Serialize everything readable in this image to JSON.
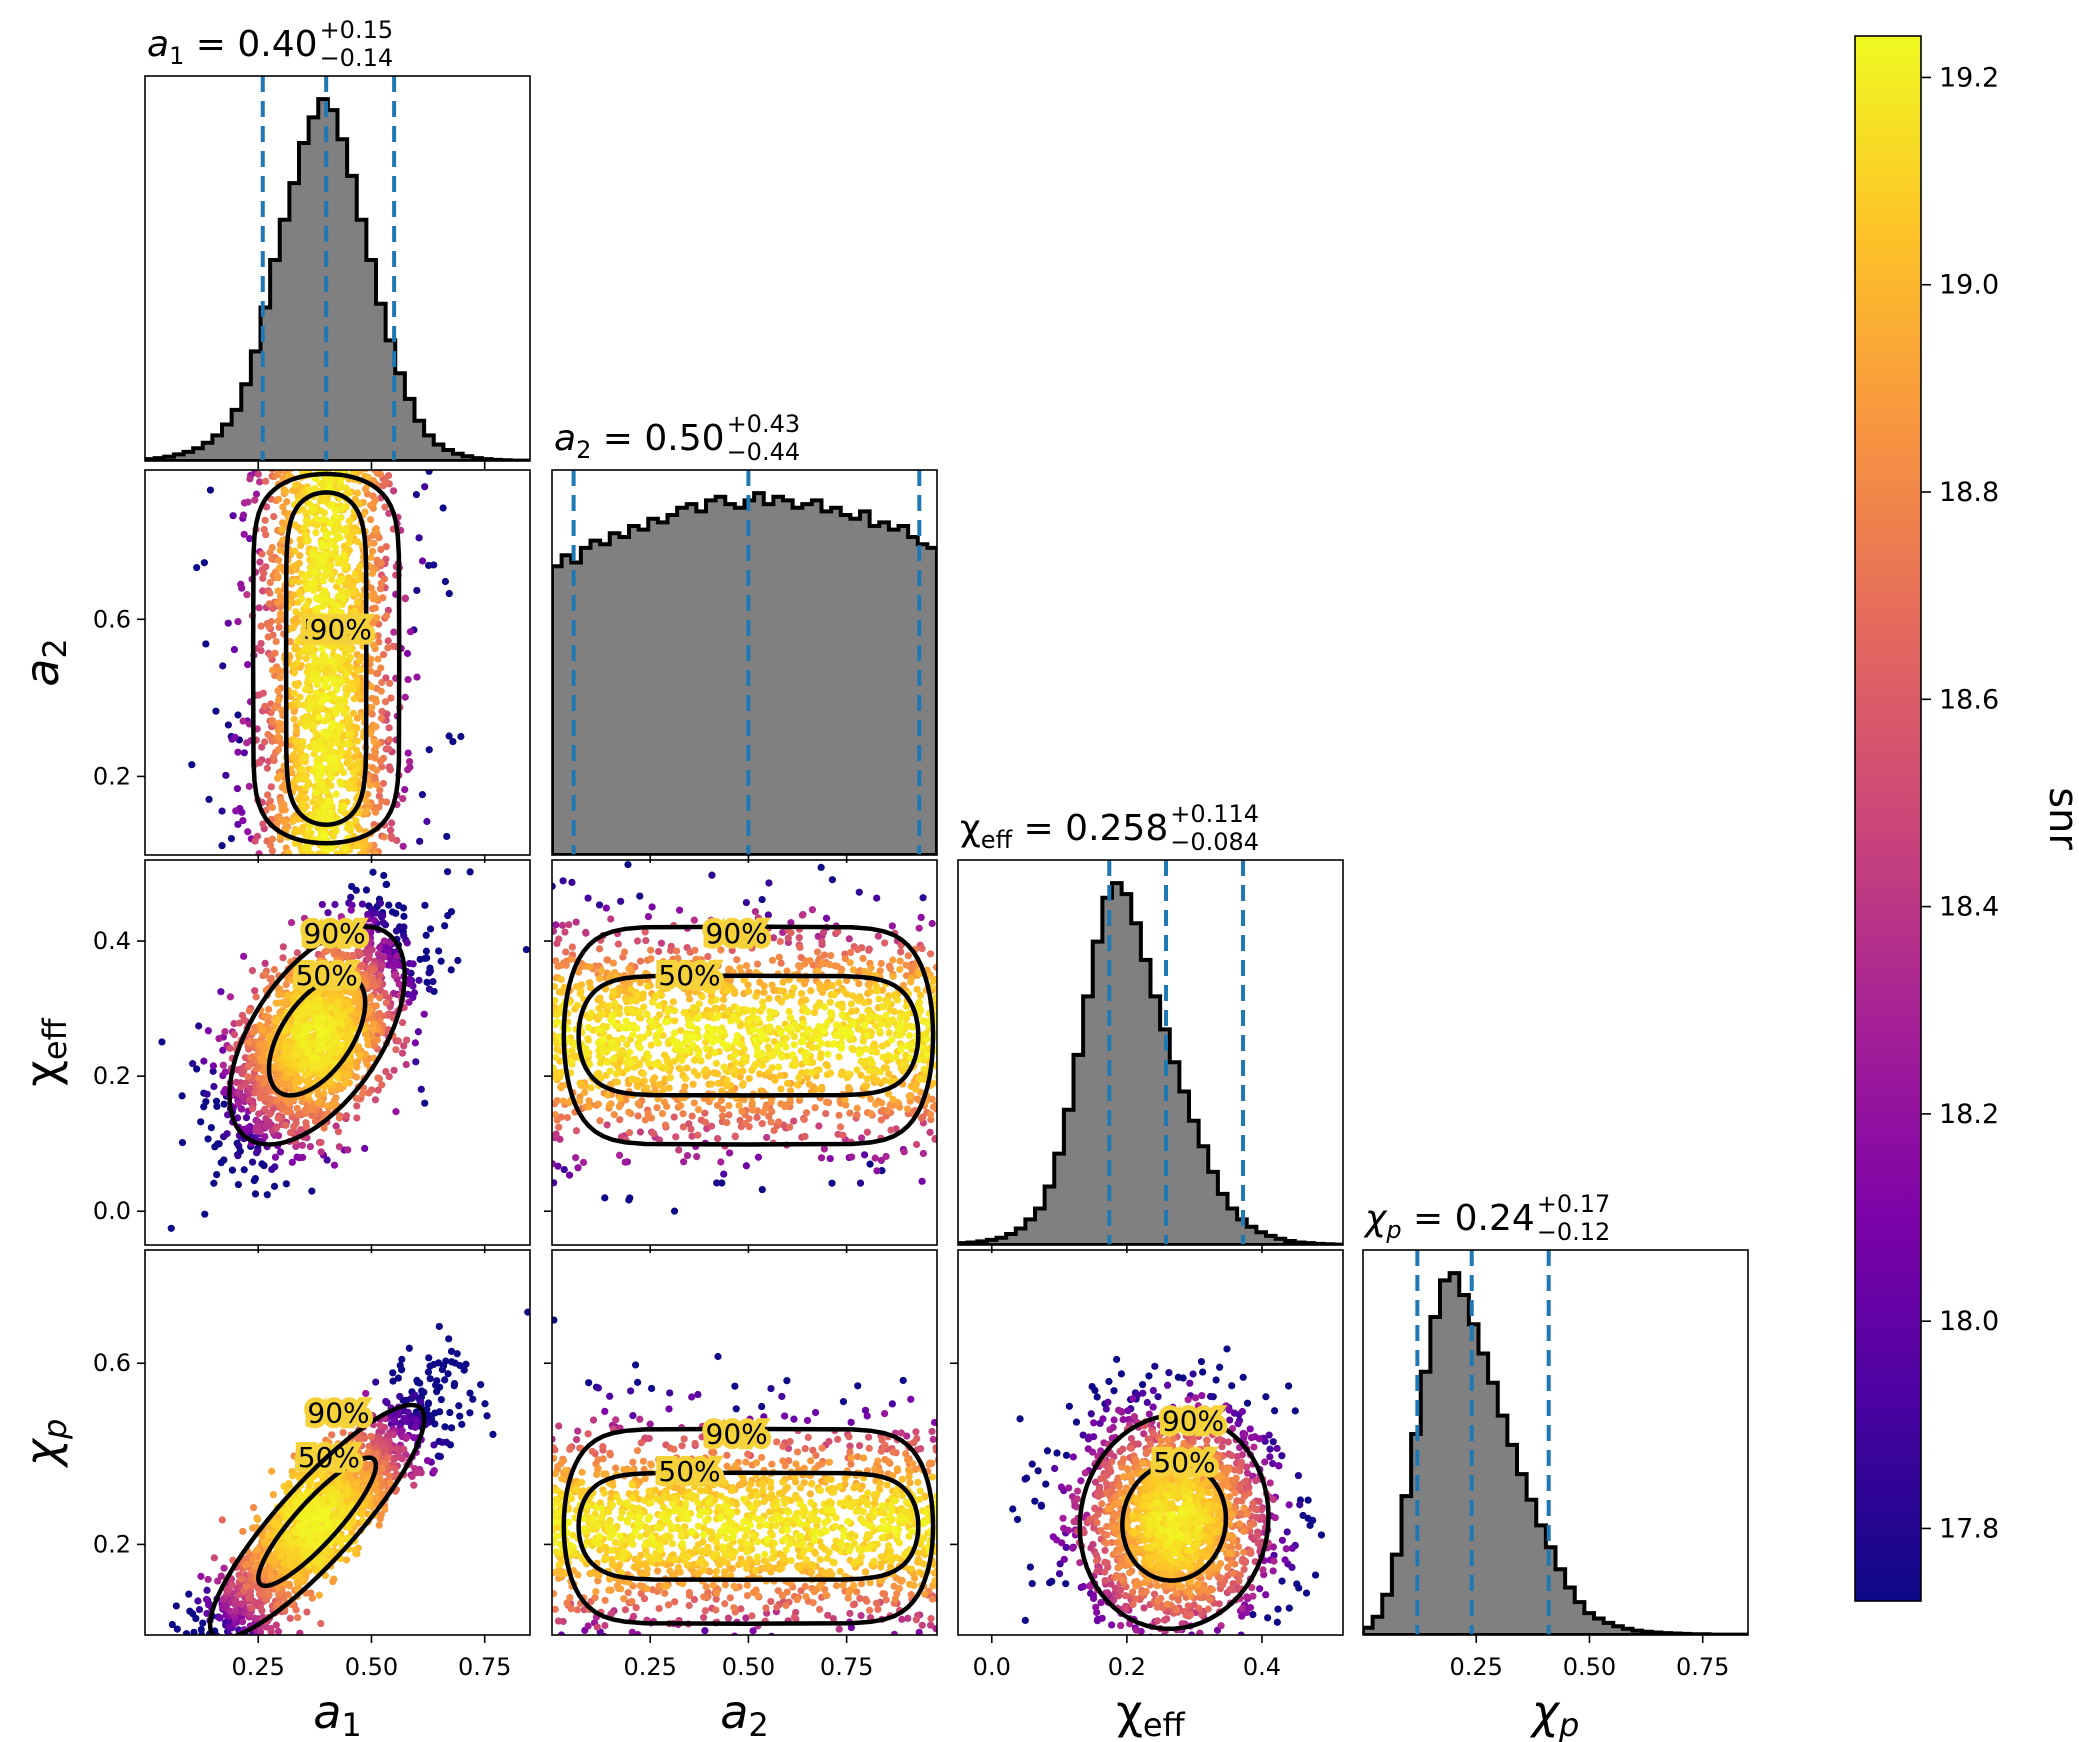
{
  "chart_data": {
    "type": "corner",
    "parameters": [
      {
        "key": "a1",
        "label_main": "a",
        "label_sub": "1",
        "label_italic": true,
        "range": [
          0.0,
          0.85
        ],
        "ticks": [
          0.25,
          0.5,
          0.75
        ],
        "tick_labels": [
          "0.25",
          "0.50",
          "0.75"
        ],
        "title": {
          "median": "0.40",
          "plus": "+0.15",
          "minus": "−0.14",
          "median_value": 0.4,
          "lo": 0.26,
          "hi": 0.55
        }
      },
      {
        "key": "a2",
        "label_main": "a",
        "label_sub": "2",
        "label_italic": true,
        "range": [
          0.0,
          0.98
        ],
        "ticks": [
          0.25,
          0.5,
          0.75
        ],
        "tick_labels": [
          "0.25",
          "0.50",
          "0.75"
        ],
        "yticks": [
          0.2,
          0.6
        ],
        "ytick_labels": [
          "0.2",
          "0.6"
        ],
        "title": {
          "median": "0.50",
          "plus": "+0.43",
          "minus": "−0.44",
          "median_value": 0.5,
          "lo": 0.055,
          "hi": 0.935
        }
      },
      {
        "key": "chi_eff",
        "label_main": "χ",
        "label_sub": "eff",
        "label_italic": false,
        "range": [
          -0.05,
          0.52
        ],
        "ticks": [
          0.0,
          0.2,
          0.4
        ],
        "tick_labels": [
          "0.0",
          "0.2",
          "0.4"
        ],
        "yticks": [
          0.0,
          0.2,
          0.4
        ],
        "ytick_labels": [
          "0.0",
          "0.2",
          "0.4"
        ],
        "title": {
          "median": "0.258",
          "plus": "+0.114",
          "minus": "−0.084",
          "median_value": 0.258,
          "lo": 0.174,
          "hi": 0.372
        }
      },
      {
        "key": "chi_p",
        "label_main": "χ",
        "label_sub": "p",
        "label_italic": true,
        "range": [
          0.0,
          0.85
        ],
        "ticks": [
          0.25,
          0.5,
          0.75
        ],
        "tick_labels": [
          "0.25",
          "0.50",
          "0.75"
        ],
        "yticks": [
          0.2,
          0.6
        ],
        "ytick_labels": [
          "0.2",
          "0.6"
        ],
        "title": {
          "median": "0.24",
          "plus": "+0.17",
          "minus": "−0.12",
          "median_value": 0.24,
          "lo": 0.12,
          "hi": 0.41
        }
      }
    ],
    "histograms": {
      "a1": [
        0.005,
        0.008,
        0.012,
        0.018,
        0.025,
        0.035,
        0.05,
        0.07,
        0.1,
        0.14,
        0.21,
        0.3,
        0.42,
        0.55,
        0.66,
        0.76,
        0.87,
        0.94,
        0.99,
        0.96,
        0.88,
        0.78,
        0.66,
        0.55,
        0.43,
        0.33,
        0.24,
        0.17,
        0.11,
        0.07,
        0.045,
        0.03,
        0.02,
        0.013,
        0.008,
        0.005,
        0.003,
        0.002,
        0.001,
        0.001
      ],
      "a2": [
        0.79,
        0.82,
        0.8,
        0.84,
        0.86,
        0.85,
        0.88,
        0.87,
        0.9,
        0.89,
        0.92,
        0.91,
        0.93,
        0.95,
        0.96,
        0.94,
        0.97,
        0.98,
        0.96,
        0.95,
        0.97,
        0.99,
        0.96,
        0.98,
        0.97,
        0.95,
        0.96,
        0.97,
        0.94,
        0.95,
        0.93,
        0.92,
        0.94,
        0.9,
        0.91,
        0.89,
        0.9,
        0.87,
        0.85,
        0.84
      ],
      "chi_eff": [
        0.005,
        0.007,
        0.01,
        0.014,
        0.02,
        0.03,
        0.045,
        0.07,
        0.1,
        0.16,
        0.25,
        0.37,
        0.52,
        0.68,
        0.83,
        0.95,
        0.99,
        0.96,
        0.88,
        0.78,
        0.68,
        0.59,
        0.5,
        0.42,
        0.34,
        0.27,
        0.2,
        0.14,
        0.1,
        0.07,
        0.05,
        0.035,
        0.025,
        0.017,
        0.011,
        0.007,
        0.005,
        0.003,
        0.002,
        0.001
      ],
      "chi_p": [
        0.02,
        0.05,
        0.11,
        0.22,
        0.38,
        0.55,
        0.72,
        0.87,
        0.97,
        0.99,
        0.93,
        0.85,
        0.77,
        0.69,
        0.6,
        0.52,
        0.44,
        0.37,
        0.3,
        0.24,
        0.18,
        0.13,
        0.09,
        0.06,
        0.045,
        0.033,
        0.024,
        0.017,
        0.012,
        0.009,
        0.007,
        0.005,
        0.004,
        0.003,
        0.002,
        0.002,
        0.001,
        0.001,
        0.001,
        0.001
      ]
    },
    "scatter": {
      "a2|a1": {
        "cx": 0.4,
        "cy": 0.49,
        "sx": 0.075,
        "sy": 0.27,
        "rho": 0.0
      },
      "chi_eff|a1": {
        "cx": 0.38,
        "cy": 0.26,
        "sx": 0.09,
        "sy": 0.075,
        "rho": 0.55
      },
      "chi_p|a1": {
        "cx": 0.38,
        "cy": 0.25,
        "sx": 0.11,
        "sy": 0.12,
        "rho": 0.88
      },
      "chi_eff|a2": {
        "cx": 0.5,
        "cy": 0.26,
        "sx": 0.26,
        "sy": 0.075,
        "rho": 0.0
      },
      "chi_p|a2": {
        "cx": 0.5,
        "cy": 0.24,
        "sx": 0.26,
        "sy": 0.1,
        "rho": 0.0
      },
      "chi_p|chi_eff": {
        "cx": 0.27,
        "cy": 0.25,
        "sx": 0.065,
        "sy": 0.11,
        "rho": 0.05
      }
    },
    "contour_labels": [
      "50%",
      "90%"
    ],
    "colorbar": {
      "label": "snr",
      "min": 17.73,
      "max": 19.24,
      "ticks": [
        17.8,
        18.0,
        18.2,
        18.4,
        18.6,
        18.8,
        19.0,
        19.2
      ],
      "tick_labels": [
        "17.8",
        "18.0",
        "18.2",
        "18.4",
        "18.6",
        "18.8",
        "19.0",
        "19.2"
      ],
      "colormap": "plasma"
    },
    "hist_fill": "#808080",
    "hist_edge": "#000000",
    "quantile_line_color": "#1f77b4",
    "grid": false
  }
}
